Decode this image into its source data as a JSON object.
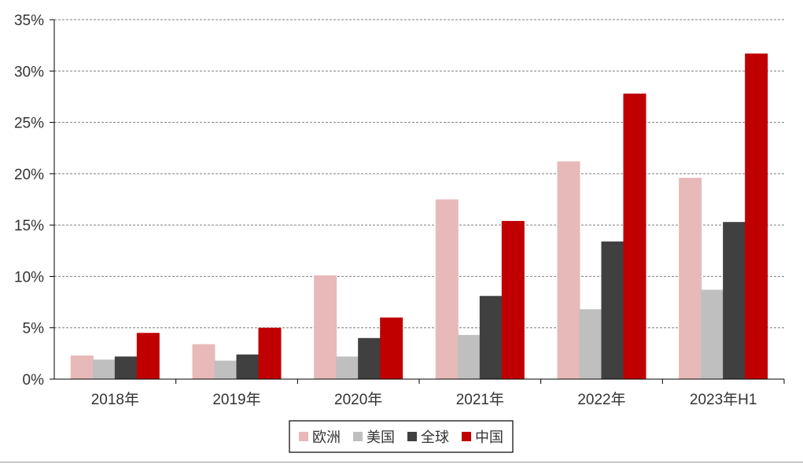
{
  "chart_data": {
    "type": "bar",
    "title": "",
    "xlabel": "",
    "ylabel": "",
    "categories": [
      "2018年",
      "2019年",
      "2020年",
      "2021年",
      "2022年",
      "2023年H1"
    ],
    "ylim": [
      0,
      35
    ],
    "yticks": [
      0,
      5,
      10,
      15,
      20,
      25,
      30,
      35
    ],
    "ytick_labels": [
      "0%",
      "5%",
      "10%",
      "15%",
      "20%",
      "25%",
      "30%",
      "35%"
    ],
    "grid": "horizontal dashed",
    "legend_position": "bottom-center",
    "series": [
      {
        "name": "欧洲",
        "color": "#E8B9B9",
        "values": [
          2.3,
          3.4,
          10.1,
          17.5,
          21.2,
          19.6
        ]
      },
      {
        "name": "美国",
        "color": "#BFBFBF",
        "values": [
          1.9,
          1.8,
          2.2,
          4.3,
          6.8,
          8.7
        ]
      },
      {
        "name": "全球",
        "color": "#404040",
        "values": [
          2.2,
          2.4,
          4.0,
          8.1,
          13.4,
          15.3
        ]
      },
      {
        "name": "中国",
        "color": "#C00000",
        "values": [
          4.5,
          5.0,
          6.0,
          15.4,
          27.8,
          31.7
        ]
      }
    ]
  }
}
